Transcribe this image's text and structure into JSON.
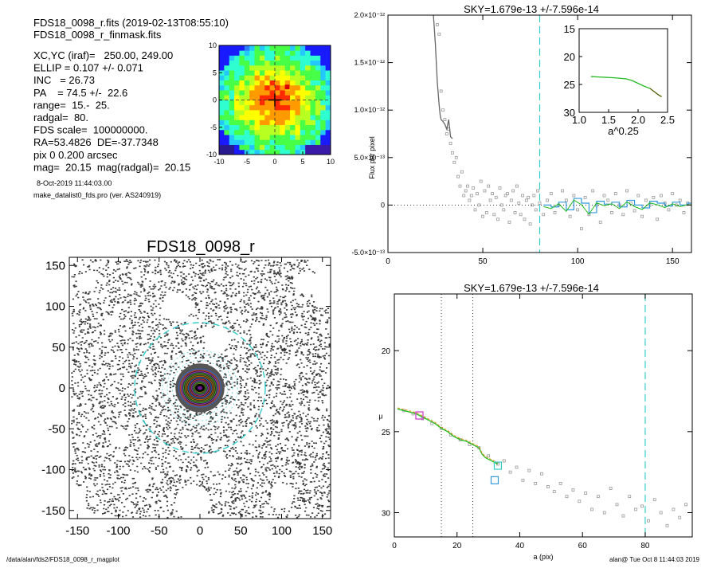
{
  "header": {
    "fits_line": "FDS18_0098_r.fits  (2019-02-13T08:55:10)",
    "mask_line": "FDS18_0098_r_finmask.fits",
    "params": [
      "XC,YC (iraf)=   250.00, 249.00",
      "ELLIP = 0.107 +/- 0.071",
      "INC   = 26.73",
      "PA    = 74.5 +/-  22.6",
      "range=  15.-  25.",
      "radgal=  80.",
      "FDS scale=  100000000.",
      "RA=53.4826  DE=-37.7348",
      "pix 0 0.200 arcsec",
      "mag=  20.15  mag(radgal)=  20.15"
    ],
    "date_line": "8-Oct-2019 11:44:03.00",
    "program_line": "make_datalist0_fds.pro (ver. AS240919)"
  },
  "footer": {
    "path": "/data/alan/fds2/FDS18_0098_r_magplot",
    "user_time": "alan@  Tue Oct  8 11:44:03 2019"
  },
  "colors": {
    "sky_line": "#33cccc",
    "profile_green": "#22bb22",
    "profile_gray": "#666666",
    "magenta": "#cc33cc",
    "orange": "#dd8800",
    "blue_box": "#3399dd"
  },
  "chart_data": [
    {
      "type": "heatmap",
      "name": "thumbnail",
      "xlim": [
        -10,
        10
      ],
      "ylim": [
        -10,
        10
      ],
      "xticks": [
        "-10",
        "-5",
        "0",
        "5",
        "10"
      ],
      "yticks": [
        "10",
        "5",
        "0",
        "-5",
        "-10"
      ],
      "grid": false
    },
    {
      "type": "scatter",
      "name": "image",
      "title": "FDS18_0098_r",
      "xlim": [
        -160,
        160
      ],
      "ylim": [
        -160,
        160
      ],
      "xticks": [
        "-150",
        "-100",
        "-50",
        "0",
        "50",
        "100",
        "150"
      ],
      "yticks": [
        "150",
        "100",
        "50",
        "0",
        "-50",
        "-100",
        "-150"
      ],
      "circle_radius": 80
    },
    {
      "type": "line",
      "name": "flux",
      "title": "SKY=1.679e-13 +/-7.596e-14",
      "xlabel": "",
      "ylabel": "Flux per pixel",
      "xlim": [
        0,
        160
      ],
      "ylim": [
        -5e-13,
        2e-12
      ],
      "xticks": [
        "0",
        "50",
        "100",
        "150"
      ],
      "yticks": [
        "-5.0×10⁻¹³",
        "0",
        "5.0×10⁻¹³",
        "1.0×10⁻¹²",
        "1.5×10⁻¹²",
        "2.0×10⁻¹²"
      ],
      "sky_a": 80,
      "profile_x": [
        24,
        25,
        26,
        27,
        27.5,
        28,
        29,
        30,
        31,
        32,
        33,
        34
      ],
      "profile_y": [
        2e-12,
        1.7e-12,
        1.3e-12,
        1.05e-12,
        9.5e-13,
        9e-13,
        8.8e-13,
        8.5e-13,
        8e-13,
        9e-13,
        7.2e-13,
        7e-13
      ],
      "scatter_x": [
        26,
        27,
        28,
        29,
        30,
        31,
        32,
        33,
        34,
        35,
        36,
        37,
        38,
        39,
        40,
        41,
        42,
        43,
        44,
        45,
        46,
        47,
        48,
        49,
        50,
        51,
        52,
        53,
        54,
        55,
        56,
        57,
        58,
        59,
        60,
        61,
        62,
        63,
        64,
        65,
        66,
        67,
        68,
        69,
        70,
        71,
        72,
        73,
        74,
        75,
        76,
        77,
        78,
        79,
        80,
        82,
        84,
        86,
        88,
        90,
        92,
        94,
        96,
        98,
        100,
        102,
        104,
        106,
        108,
        110,
        112,
        114,
        116,
        118,
        120,
        122,
        124,
        126,
        128,
        130,
        132,
        134,
        136,
        138,
        140,
        142,
        144,
        146,
        148,
        150,
        152,
        154,
        156,
        158
      ],
      "scatter_y": [
        1.9e-12,
        1.8e-12,
        1.2e-12,
        1e-12,
        9e-13,
        7.5e-13,
        8e-13,
        6.5e-13,
        5.5e-13,
        4.5e-13,
        5e-13,
        3e-13,
        2e-13,
        3.5e-13,
        1e-13,
        1.5e-13,
        2e-13,
        5e-14,
        1e-13,
        1.8e-13,
        -5e-14,
        1.2e-13,
        0.0,
        2.5e-13,
        -1.2e-13,
        1.5e-13,
        -8e-14,
        2e-13,
        5e-14,
        1.2e-13,
        -1e-13,
        8e-14,
        -1.5e-13,
        1.8e-13,
        0.0,
        -5e-14,
        1e-13,
        1.2e-13,
        -1.8e-13,
        5e-14,
        1.5e-13,
        -8e-14,
        2e-13,
        2e-14,
        -1e-13,
        1e-13,
        -1.5e-13,
        5e-14,
        8e-14,
        -2e-13,
        0.0,
        1e-13,
        -5e-14,
        1.5e-13,
        2e-14,
        -1e-13,
        5e-14,
        1.2e-13,
        -8e-14,
        0.0,
        1.5e-13,
        5e-14,
        -1.2e-13,
        1e-13,
        -5e-14,
        -2.5e-13,
        8e-14,
        -1e-13,
        1.5e-13,
        0.0,
        -1.8e-13,
        1e-13,
        5e-14,
        -8e-14,
        1.2e-13,
        0.0,
        -1e-13,
        1.5e-13,
        2e-14,
        -6e-14,
        1e-13,
        -1.2e-13,
        5e-14,
        0.0,
        8e-14,
        -1.5e-13,
        1e-13,
        2e-14,
        -5e-14,
        1.2e-13,
        0.0,
        5e-14,
        -8e-14,
        2e-14
      ],
      "step_x": [
        82,
        86,
        90,
        94,
        98,
        102,
        106,
        110,
        114,
        118,
        122,
        126,
        130,
        134,
        138,
        142,
        146,
        150,
        154,
        158,
        160
      ],
      "step_y": [
        0.0,
        -2e-14,
        3e-14,
        -5e-14,
        7e-14,
        2e-14,
        -8e-14,
        4e-14,
        1e-14,
        3e-14,
        -2e-14,
        5e-14,
        0.0,
        -3e-14,
        4e-14,
        2e-14,
        -1e-14,
        3e-14,
        0.0,
        2e-14,
        2e-14
      ]
    },
    {
      "type": "line",
      "name": "inset",
      "xlabel": "a^0.25",
      "ylabel": "",
      "xlim": [
        1.0,
        2.5
      ],
      "ylim": [
        30,
        15
      ],
      "xticks": [
        "1.0",
        "1.5",
        "2.0",
        "2.5"
      ],
      "yticks": [
        "15",
        "20",
        "25",
        "30"
      ],
      "x": [
        1.2,
        1.4,
        1.6,
        1.8,
        1.9,
        2.0,
        2.1,
        2.2,
        2.3,
        2.35,
        2.4
      ],
      "y": [
        23.6,
        23.7,
        23.8,
        24.0,
        24.3,
        24.8,
        25.3,
        25.7,
        26.5,
        26.9,
        27.2
      ]
    },
    {
      "type": "scatter",
      "name": "mu",
      "title": "SKY=1.679e-13 +/-7.596e-14",
      "xlabel": "a (pix)",
      "ylabel": "μ",
      "xlim": [
        0,
        95
      ],
      "ylim": [
        31.5,
        16.5
      ],
      "xticks": [
        "0",
        "20",
        "40",
        "60",
        "80"
      ],
      "yticks": [
        "20",
        "25",
        "30"
      ],
      "range_lines": [
        15,
        25
      ],
      "sky_a": 80,
      "profile_x": [
        1,
        3,
        5,
        7,
        9,
        11,
        13,
        15,
        17,
        19,
        21,
        23,
        25,
        27,
        28,
        29,
        30,
        31,
        32,
        33
      ],
      "profile_y": [
        23.6,
        23.7,
        23.8,
        23.9,
        24.1,
        24.3,
        24.5,
        24.8,
        25.0,
        25.3,
        25.5,
        25.6,
        25.8,
        26.0,
        26.4,
        26.6,
        26.7,
        26.8,
        26.9,
        27.0
      ],
      "scatter_x": [
        3,
        6,
        9,
        12,
        15,
        18,
        21,
        24,
        27,
        30,
        33,
        35,
        37,
        39,
        41,
        43,
        45,
        47,
        49,
        51,
        53,
        55,
        57,
        59,
        61,
        63,
        65,
        67,
        69,
        71,
        73,
        75,
        77,
        79,
        81,
        83,
        85,
        87,
        89,
        91,
        93
      ],
      "scatter_y": [
        23.7,
        23.9,
        24.2,
        24.5,
        24.8,
        25.2,
        25.5,
        25.8,
        26.0,
        26.5,
        27.0,
        26.8,
        27.5,
        27.2,
        28.0,
        27.4,
        28.2,
        27.6,
        28.4,
        28.7,
        28.2,
        29.0,
        28.6,
        29.3,
        28.8,
        29.8,
        29.0,
        30.0,
        28.5,
        29.5,
        30.2,
        29.0,
        29.8,
        29.6,
        30.5,
        29.2,
        30.0,
        30.8,
        29.8,
        30.3,
        29.5
      ],
      "markers": [
        {
          "x": 8,
          "y": 24.0,
          "color": "#cc33cc"
        },
        {
          "x": 32,
          "y": 28.0,
          "color": "#3399dd"
        },
        {
          "x": 33,
          "y": 27.1,
          "color": "#33cccc"
        }
      ]
    }
  ]
}
